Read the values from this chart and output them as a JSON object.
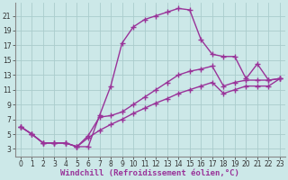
{
  "bg_color": "#cce8e8",
  "grid_color": "#aacccc",
  "line_color": "#993399",
  "line_width": 1.0,
  "marker": "+",
  "marker_size": 4,
  "marker_edge_width": 1.0,
  "xlabel": "Windchill (Refroidissement éolien,°C)",
  "xlabel_fontsize": 6.5,
  "ylabel_ticks": [
    3,
    5,
    7,
    9,
    11,
    13,
    15,
    17,
    19,
    21
  ],
  "xlim": [
    -0.5,
    23.5
  ],
  "ylim": [
    2.0,
    22.8
  ],
  "xticks": [
    0,
    1,
    2,
    3,
    4,
    5,
    6,
    7,
    8,
    9,
    10,
    11,
    12,
    13,
    14,
    15,
    16,
    17,
    18,
    19,
    20,
    21,
    22,
    23
  ],
  "curve1_x": [
    0,
    1,
    2,
    3,
    4,
    5,
    6,
    7,
    8,
    9,
    10,
    11,
    12,
    13,
    14,
    15,
    16,
    17,
    18,
    19,
    20,
    21,
    22,
    23
  ],
  "curve1_y": [
    6.0,
    5.0,
    3.8,
    3.8,
    3.8,
    3.3,
    3.3,
    7.5,
    11.5,
    17.3,
    19.5,
    20.5,
    21.0,
    21.5,
    22.0,
    21.8,
    17.8,
    15.8,
    15.5,
    15.5,
    12.5,
    14.5,
    12.3,
    12.5
  ],
  "curve2_x": [
    0,
    1,
    2,
    3,
    4,
    5,
    6,
    7,
    8,
    9,
    10,
    11,
    12,
    13,
    14,
    15,
    16,
    17,
    18,
    19,
    20,
    21,
    22,
    23
  ],
  "curve2_y": [
    6.0,
    5.0,
    3.8,
    3.8,
    3.8,
    3.3,
    4.8,
    7.3,
    7.5,
    8.0,
    9.0,
    10.0,
    11.0,
    12.0,
    13.0,
    13.5,
    13.8,
    14.2,
    11.5,
    12.0,
    12.3,
    12.3,
    12.3,
    12.5
  ],
  "curve3_x": [
    0,
    1,
    2,
    3,
    4,
    5,
    6,
    7,
    8,
    9,
    10,
    11,
    12,
    13,
    14,
    15,
    16,
    17,
    18,
    19,
    20,
    21,
    22,
    23
  ],
  "curve3_y": [
    6.0,
    5.0,
    3.8,
    3.8,
    3.8,
    3.3,
    4.5,
    5.5,
    6.3,
    7.0,
    7.8,
    8.5,
    9.2,
    9.8,
    10.5,
    11.0,
    11.5,
    12.0,
    10.5,
    11.0,
    11.5,
    11.5,
    11.5,
    12.5
  ],
  "tick_fontsize": 5.5,
  "figsize": [
    3.2,
    2.0
  ],
  "dpi": 100
}
